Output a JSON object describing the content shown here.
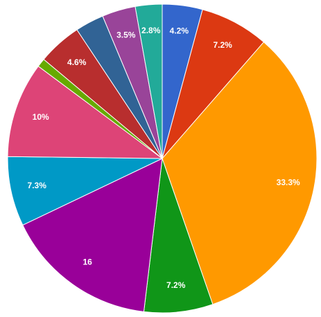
{
  "chart_data": {
    "type": "pie",
    "values": [
      4.2,
      7.2,
      33.3,
      7.2,
      16,
      7.3,
      10,
      0.9,
      4.6,
      3.0,
      3.5,
      2.8
    ],
    "value_labels": [
      "4.2%",
      "7.2%",
      "33.3%",
      "7.2%",
      "16",
      "7.3%",
      "10%",
      null,
      "4.6%",
      null,
      "3.5%",
      "2.8%"
    ],
    "colors": [
      "#3366cc",
      "#dc3912",
      "#ff9900",
      "#109618",
      "#990099",
      "#0099c6",
      "#dd4477",
      "#66aa00",
      "#b82e2e",
      "#316395",
      "#994499",
      "#22aa99"
    ]
  }
}
